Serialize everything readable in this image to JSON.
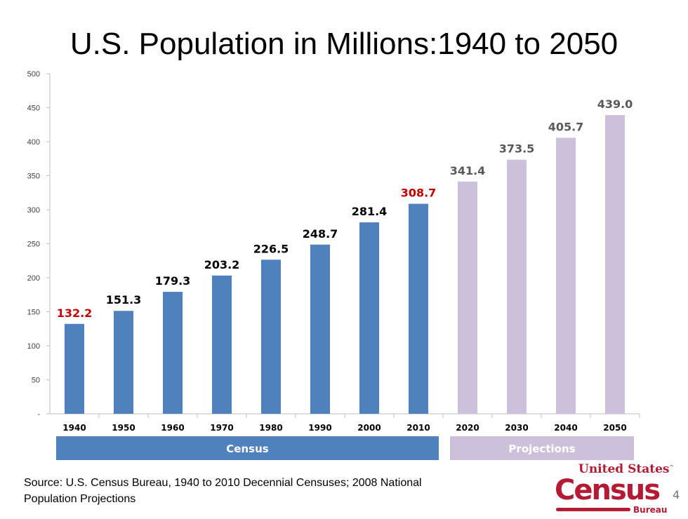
{
  "chart_data": {
    "type": "bar",
    "title": "U.S. Population in Millions:1940 to 2050",
    "categories": [
      "1940",
      "1950",
      "1960",
      "1970",
      "1980",
      "1990",
      "2000",
      "2010",
      "2020",
      "2030",
      "2040",
      "2050"
    ],
    "values": [
      132.2,
      151.3,
      179.3,
      203.2,
      226.5,
      248.7,
      281.4,
      308.7,
      341.4,
      373.5,
      405.7,
      439.0
    ],
    "value_labels": [
      "132.2",
      "151.3",
      "179.3",
      "203.2",
      "226.5",
      "248.7",
      "281.4",
      "308.7",
      "341.4",
      "373.5",
      "405.7",
      "439.0"
    ],
    "ylim": [
      0,
      500
    ],
    "yticks": [
      "-",
      "50",
      "100",
      "150",
      "200",
      "250",
      "300",
      "350",
      "400",
      "450",
      "500"
    ],
    "grid": false,
    "groups": [
      {
        "label": "Census",
        "categories": [
          "1940",
          "2010"
        ],
        "color": "#4f81bd"
      },
      {
        "label": "Projections",
        "categories": [
          "2020",
          "2050"
        ],
        "color": "#ccc0da"
      }
    ],
    "label_colors": {
      "default": "#000000",
      "highlight": "#c00000",
      "projection": "#595959"
    },
    "highlighted": [
      "1940",
      "2010"
    ]
  },
  "footer": {
    "source_line1": "Source: U.S. Census Bureau, 1940 to 2010 Decennial Censuses; 2008 National",
    "source_line2": "Population Projections",
    "page_number": "4",
    "logo_text": "United States Census Bureau"
  }
}
